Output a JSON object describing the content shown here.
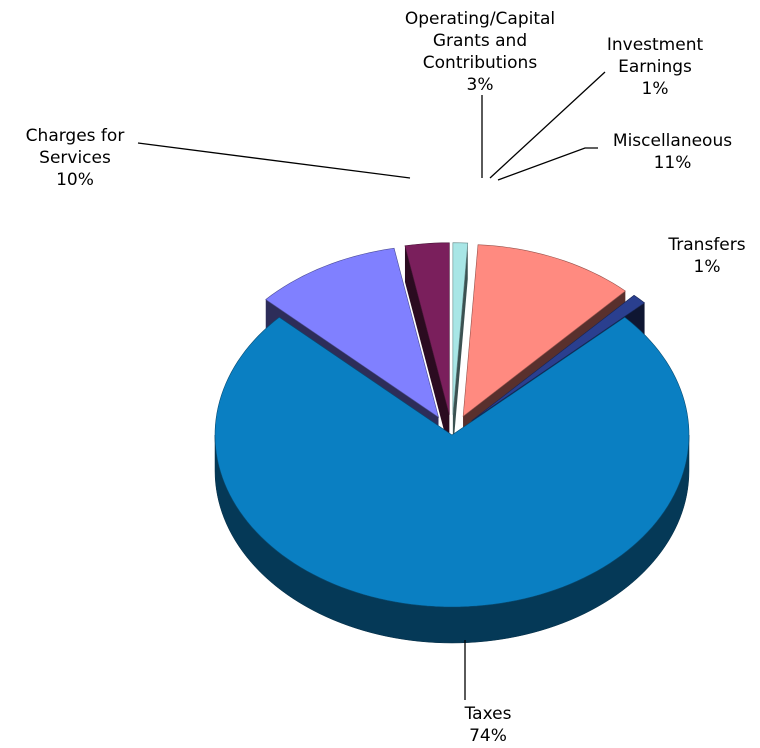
{
  "chart_data": {
    "type": "pie",
    "categories": [
      "Taxes",
      "Charges for Services",
      "Operating/Capital Grants and Contributions",
      "Investment Earnings",
      "Miscellaneous",
      "Transfers"
    ],
    "values": [
      74,
      10,
      3,
      1,
      11,
      1
    ],
    "value_labels": [
      "74%",
      "10%",
      "3%",
      "1%",
      "11%",
      "1%"
    ],
    "colors": [
      "#0a7fc2",
      "#8080ff",
      "#7a1f5c",
      "#a8e6e6",
      "#ff8a80",
      "#2a3f8f"
    ]
  }
}
